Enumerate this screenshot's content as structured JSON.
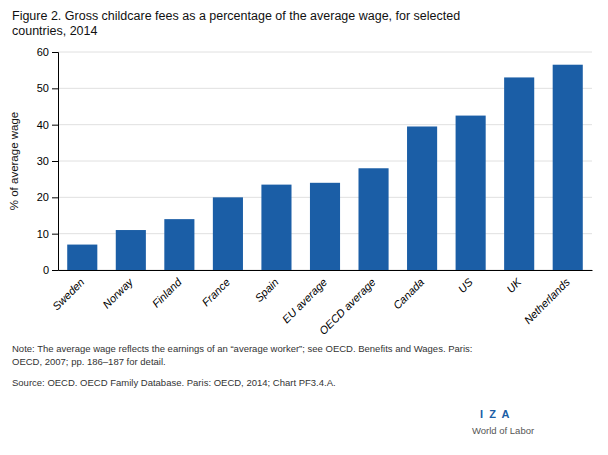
{
  "chart_data": {
    "type": "bar",
    "title": "Figure 2. Gross childcare fees as a percentage of the average wage, for selected\ncountries, 2014",
    "categories": [
      "Sweden",
      "Norway",
      "Finland",
      "France",
      "Spain",
      "EU average",
      "OECD average",
      "Canada",
      "US",
      "UK",
      "Netherlands"
    ],
    "values": [
      7.0,
      11.0,
      14.0,
      20.0,
      23.5,
      24.0,
      28.0,
      39.5,
      42.5,
      53.0,
      56.5
    ],
    "color": "#1b5ea6",
    "ylabel": "% of average wage",
    "ylim": [
      0,
      60
    ],
    "yticks": [
      0,
      10,
      20,
      30,
      40,
      50,
      60
    ],
    "grid": true,
    "annotations": [
      "Note: The average wage reflects the earnings of an “average worker”; see OECD. Benefits and Wages. Paris:\nOECD, 2007; pp. 186–187 for detail.",
      "Source: OECD. OECD Family Database. Paris: OECD, 2014; Chart PF3.4.A.",
      "I  Z  A",
      "World of Labor"
    ]
  }
}
